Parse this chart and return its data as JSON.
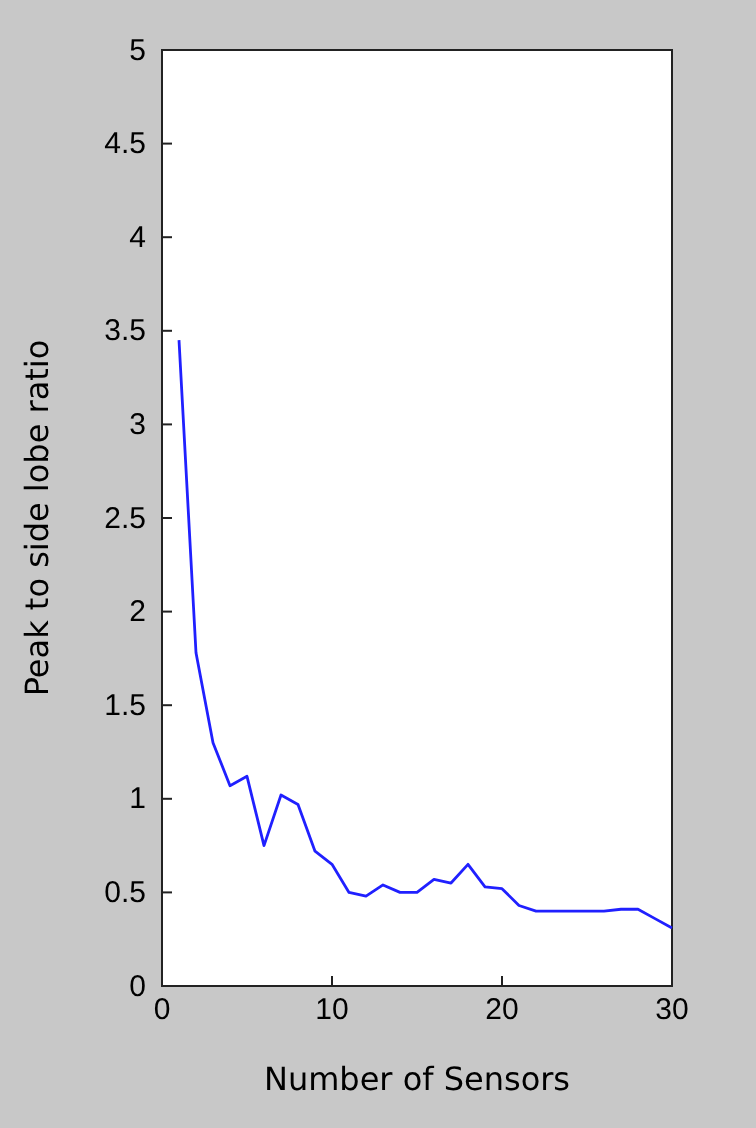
{
  "chart_data": {
    "type": "line",
    "xlabel": "Number of Sensors",
    "ylabel": "Peak to side lobe ratio",
    "x": [
      1,
      2,
      3,
      4,
      5,
      6,
      7,
      8,
      9,
      10,
      11,
      12,
      13,
      14,
      15,
      16,
      17,
      18,
      19,
      20,
      21,
      22,
      23,
      24,
      25,
      26,
      27,
      28,
      29,
      30
    ],
    "series": [
      {
        "color": "#2020ff",
        "values": [
          3.45,
          1.78,
          1.3,
          1.07,
          1.12,
          0.75,
          1.02,
          0.97,
          0.72,
          0.65,
          0.5,
          0.48,
          0.54,
          0.5,
          0.5,
          0.57,
          0.55,
          0.65,
          0.53,
          0.52,
          0.43,
          0.4,
          0.4,
          0.4,
          0.4,
          0.4,
          0.41,
          0.41,
          0.36,
          0.31
        ]
      }
    ],
    "xlim": [
      0,
      30
    ],
    "xticks": [
      0,
      10,
      20,
      30
    ],
    "ylim": [
      0,
      5
    ],
    "yticks": [
      0,
      0.5,
      1,
      1.5,
      2,
      2.5,
      3,
      3.5,
      4,
      4.5,
      5
    ],
    "grid": false,
    "marker": "none",
    "line_style": "solid"
  }
}
